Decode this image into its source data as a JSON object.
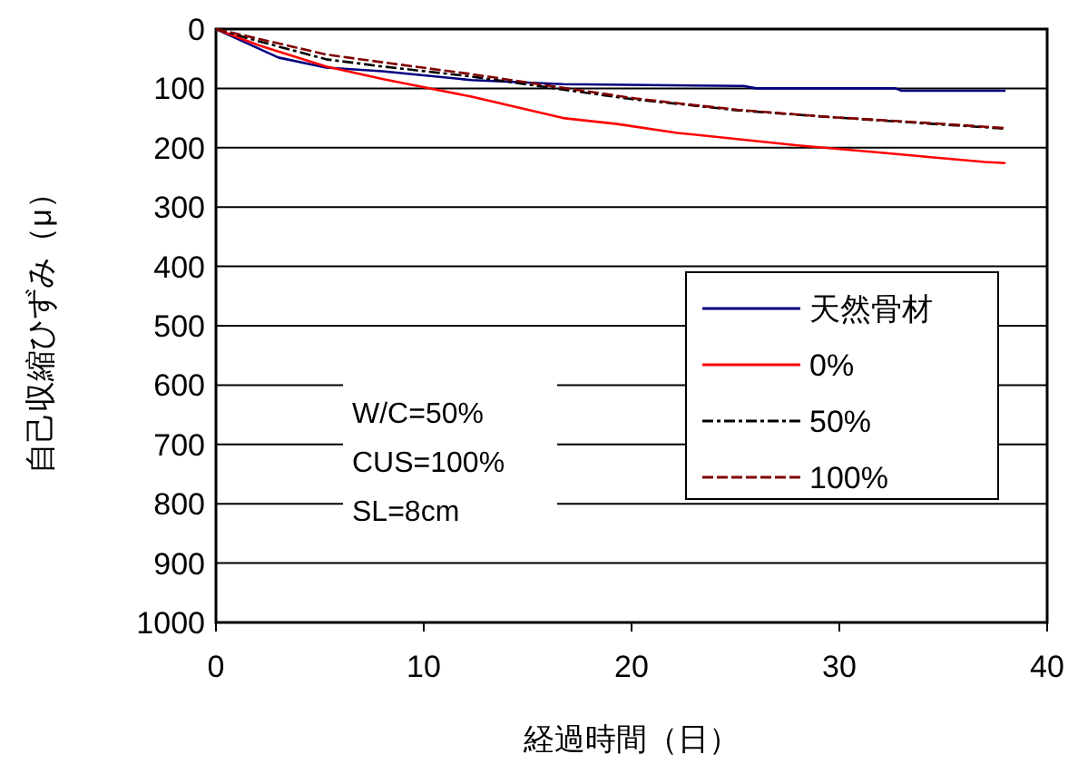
{
  "chart_data": {
    "type": "line",
    "xlabel": "経過時間（日）",
    "ylabel": "自己収縮ひずみ（μ）",
    "xlim": [
      0,
      40
    ],
    "xticks": [
      0,
      10,
      20,
      30,
      40
    ],
    "ylim": [
      1000,
      0
    ],
    "yticks": [
      0,
      100,
      200,
      300,
      400,
      500,
      600,
      700,
      800,
      900,
      1000
    ],
    "grid": "y",
    "legend": "right",
    "annotations": [
      "W/C=50%",
      "CUS=100%",
      "SL=8cm"
    ],
    "series": [
      {
        "name": "天然骨材",
        "color": "#000080",
        "line_style": "solid",
        "x": [
          0,
          3,
          5.3,
          8,
          12.3,
          16.7,
          25.4,
          26,
          32.7,
          33,
          38
        ],
        "values": [
          0,
          48,
          65,
          71,
          86,
          93,
          96,
          100,
          100,
          104,
          104
        ]
      },
      {
        "name": "0%",
        "color": "#ff0000",
        "line_style": "solid",
        "x": [
          0,
          2.1,
          5.3,
          8,
          12.3,
          16.7,
          19.3,
          22.2,
          28,
          31.9,
          34.4,
          37,
          38
        ],
        "values": [
          0,
          28,
          63,
          84,
          114,
          150,
          160,
          175,
          196,
          208,
          216,
          224,
          226
        ]
      },
      {
        "name": "50%",
        "color": "#000000",
        "line_style": "dashdot",
        "x": [
          0,
          2,
          5.3,
          8,
          12.3,
          16.7,
          20.2,
          22.2,
          25.1,
          29.4,
          33.7,
          37.6,
          38
        ],
        "values": [
          0,
          20,
          51,
          63,
          80,
          102,
          119,
          126,
          137,
          148,
          158,
          167,
          168
        ]
      },
      {
        "name": "100%",
        "color": "#800000",
        "line_style": "dashed",
        "x": [
          0,
          2,
          5.3,
          8,
          12.3,
          16.7,
          20.2,
          22.2,
          25.1,
          29.4,
          33.7,
          37.6,
          38
        ],
        "values": [
          0,
          16,
          43,
          56,
          76,
          99,
          117,
          125,
          136,
          148,
          157,
          166,
          167
        ]
      }
    ]
  }
}
